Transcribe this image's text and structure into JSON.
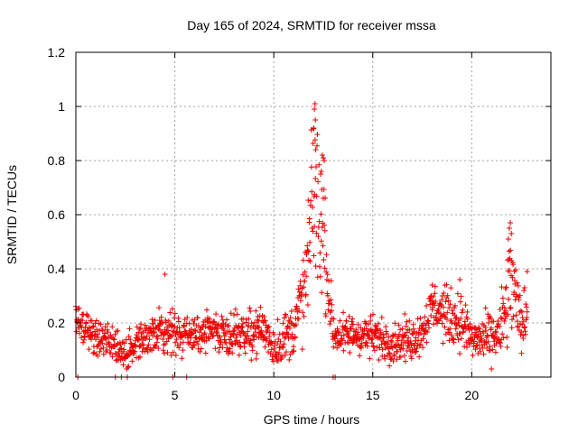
{
  "chart_data": {
    "type": "scatter",
    "title": "Day 165 of 2024, SRMTID for receiver mssa",
    "xlabel": "GPS time / hours",
    "ylabel": "SRMTID / TECUs",
    "xlim": [
      0,
      24
    ],
    "ylim": [
      0,
      1.2
    ],
    "x_ticks": [
      0,
      5,
      10,
      15,
      20
    ],
    "x_tick_labels": [
      "0",
      "5",
      "10",
      "15",
      "20"
    ],
    "y_ticks": [
      0,
      0.2,
      0.4,
      0.6,
      0.8,
      1.0,
      1.2
    ],
    "y_tick_labels": [
      "0",
      "0.2",
      "0.4",
      "0.6",
      "0.8",
      "1",
      "1.2"
    ],
    "grid": true,
    "marker": "+",
    "color": "#ee0000",
    "series": [
      {
        "name": "SRMTID",
        "profile_x": [
          0,
          0.2,
          0.5,
          1,
          1.5,
          2,
          2.5,
          3,
          3.5,
          4,
          4.5,
          5,
          5.5,
          6,
          7,
          8,
          9,
          9.5,
          10,
          10.5,
          11,
          11.5,
          11.8,
          12,
          12.2,
          12.4,
          12.6,
          12.8,
          13,
          13.5,
          14,
          15,
          16,
          17,
          17.5,
          18,
          18.5,
          19,
          19.5,
          20,
          20.5,
          21,
          21.5,
          21.8,
          22,
          22.3,
          22.6,
          22.8
        ],
        "profile_y": [
          0.22,
          0.18,
          0.17,
          0.15,
          0.13,
          0.11,
          0.09,
          0.11,
          0.14,
          0.16,
          0.17,
          0.16,
          0.15,
          0.16,
          0.17,
          0.16,
          0.17,
          0.18,
          0.11,
          0.14,
          0.18,
          0.3,
          0.48,
          0.72,
          0.62,
          0.58,
          0.48,
          0.3,
          0.16,
          0.15,
          0.16,
          0.15,
          0.13,
          0.14,
          0.17,
          0.26,
          0.24,
          0.22,
          0.2,
          0.14,
          0.14,
          0.14,
          0.17,
          0.28,
          0.36,
          0.24,
          0.19,
          0.27
        ],
        "spread_x": [
          0,
          0.5,
          2,
          4,
          8,
          11,
          11.8,
          12,
          12.3,
          12.6,
          13,
          17.5,
          18.5,
          19.5,
          20.5,
          21.5,
          21.8,
          22,
          22.3,
          22.8
        ],
        "spread_y": [
          0.05,
          0.06,
          0.05,
          0.06,
          0.06,
          0.08,
          0.18,
          0.28,
          0.22,
          0.18,
          0.06,
          0.06,
          0.08,
          0.08,
          0.06,
          0.1,
          0.18,
          0.18,
          0.1,
          0.08
        ],
        "peaks": [
          {
            "x": 12.08,
            "y": 1.01
          },
          {
            "x": 12.05,
            "y": 0.99
          },
          {
            "x": 12.1,
            "y": 0.95
          },
          {
            "x": 12.02,
            "y": 0.92
          },
          {
            "x": 12.12,
            "y": 0.84
          },
          {
            "x": 12.45,
            "y": 0.82
          },
          {
            "x": 12.5,
            "y": 0.81
          },
          {
            "x": 12.55,
            "y": 0.8
          },
          {
            "x": 12.4,
            "y": 0.76
          },
          {
            "x": 21.95,
            "y": 0.57
          },
          {
            "x": 21.9,
            "y": 0.55
          },
          {
            "x": 22.0,
            "y": 0.53
          },
          {
            "x": 21.85,
            "y": 0.51
          },
          {
            "x": 4.5,
            "y": 0.38
          },
          {
            "x": 22.8,
            "y": 0.39
          },
          {
            "x": 18.0,
            "y": 0.34
          },
          {
            "x": 19.4,
            "y": 0.36
          }
        ],
        "zeros_x": [
          0.1,
          2.0,
          2.3,
          2.6,
          4.9,
          5.6,
          13.0,
          13.1
        ]
      }
    ]
  }
}
